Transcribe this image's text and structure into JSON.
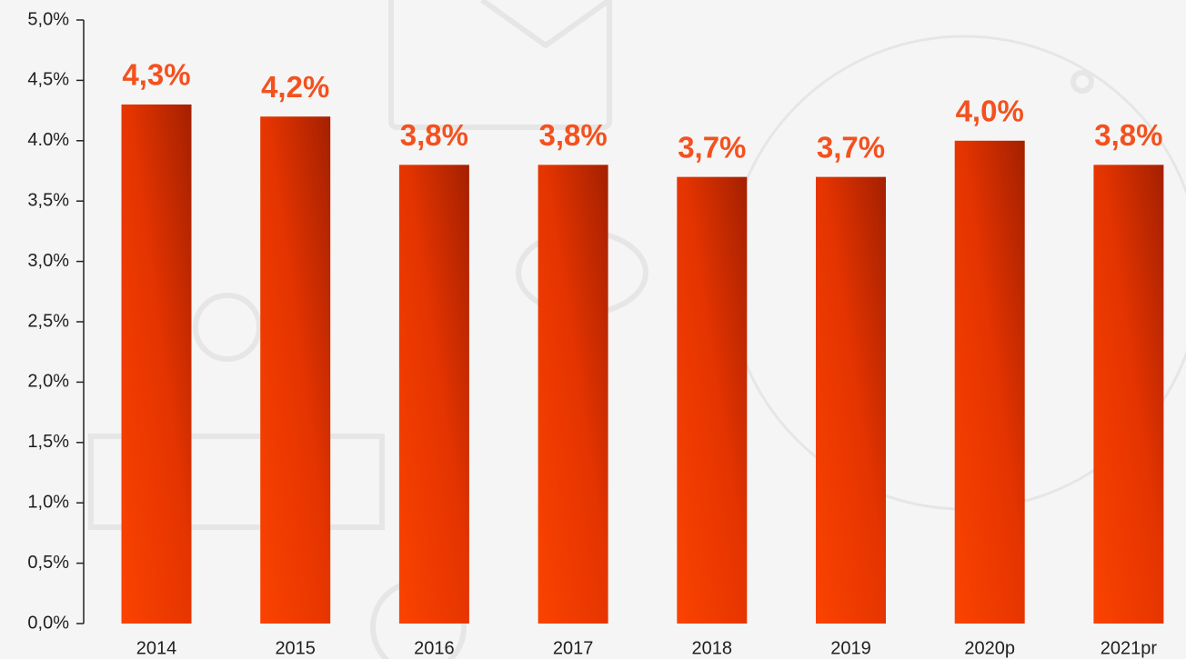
{
  "chart_data": {
    "type": "bar",
    "categories": [
      "2014",
      "2015",
      "2016",
      "2017",
      "2018",
      "2019",
      "2020p",
      "2021pr"
    ],
    "values": [
      4.3,
      4.2,
      3.8,
      3.8,
      3.7,
      3.7,
      4.0,
      3.8
    ],
    "value_labels": [
      "4,3%",
      "4,2%",
      "3,8%",
      "3,8%",
      "3,7%",
      "3,7%",
      "4,0%",
      "3,8%"
    ],
    "color": "#e83a00",
    "ylim": [
      0,
      5
    ],
    "yticks": [
      {
        "value": 0,
        "label": "0,0%"
      },
      {
        "value": 0.5,
        "label": "0,5%"
      },
      {
        "value": 1,
        "label": "1,0%"
      },
      {
        "value": 1.5,
        "label": "1,5%"
      },
      {
        "value": 2,
        "label": "2,0%"
      },
      {
        "value": 2.5,
        "label": "2,5%"
      },
      {
        "value": 3,
        "label": "3,0%"
      },
      {
        "value": 3.5,
        "label": "3,5%"
      },
      {
        "value": 4,
        "label": "4.0%"
      },
      {
        "value": 4.5,
        "label": "4,5%"
      },
      {
        "value": 5,
        "label": "5,0%"
      }
    ]
  }
}
